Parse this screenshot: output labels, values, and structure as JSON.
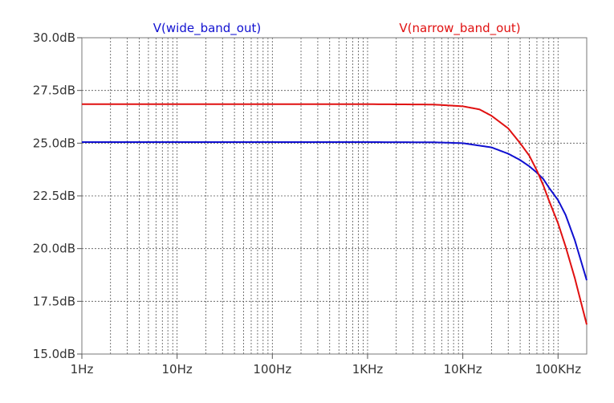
{
  "chart_data": {
    "type": "line",
    "title": "",
    "xlabel": "",
    "ylabel": "",
    "x_scale": "log",
    "xlim_hz": [
      1,
      200000
    ],
    "ylim_db": [
      15,
      30
    ],
    "grid": true,
    "y_ticks": [
      {
        "value": 15.0,
        "label": "15.0dB"
      },
      {
        "value": 17.5,
        "label": "17.5dB"
      },
      {
        "value": 20.0,
        "label": "20.0dB"
      },
      {
        "value": 22.5,
        "label": "22.5dB"
      },
      {
        "value": 25.0,
        "label": "25.0dB"
      },
      {
        "value": 27.5,
        "label": "27.5dB"
      },
      {
        "value": 30.0,
        "label": "30.0dB"
      }
    ],
    "x_ticks": [
      {
        "value": 1,
        "label": "1Hz"
      },
      {
        "value": 10,
        "label": "10Hz"
      },
      {
        "value": 100,
        "label": "100Hz"
      },
      {
        "value": 1000,
        "label": "1KHz"
      },
      {
        "value": 10000,
        "label": "10KHz"
      },
      {
        "value": 100000,
        "label": "100KHz"
      }
    ],
    "legend_placement": "top",
    "series": [
      {
        "name": "V(wide_band_out)",
        "color": "#1010d0",
        "x": [
          1,
          10,
          100,
          1000,
          5000,
          10000,
          20000,
          30000,
          40000,
          50000,
          60000,
          70000,
          80000,
          100000,
          120000,
          150000,
          200000
        ],
        "y": [
          25.05,
          25.05,
          25.05,
          25.05,
          25.04,
          25.0,
          24.8,
          24.5,
          24.2,
          23.9,
          23.6,
          23.3,
          22.9,
          22.3,
          21.6,
          20.4,
          18.5
        ]
      },
      {
        "name": "V(narrow_band_out)",
        "color": "#e01010",
        "x": [
          1,
          10,
          100,
          1000,
          5000,
          10000,
          15000,
          20000,
          30000,
          40000,
          50000,
          60000,
          70000,
          80000,
          100000,
          120000,
          150000,
          200000
        ],
        "y": [
          26.85,
          26.85,
          26.85,
          26.85,
          26.83,
          26.75,
          26.6,
          26.3,
          25.7,
          25.0,
          24.4,
          23.7,
          23.0,
          22.3,
          21.2,
          20.1,
          18.6,
          16.4
        ]
      }
    ]
  }
}
